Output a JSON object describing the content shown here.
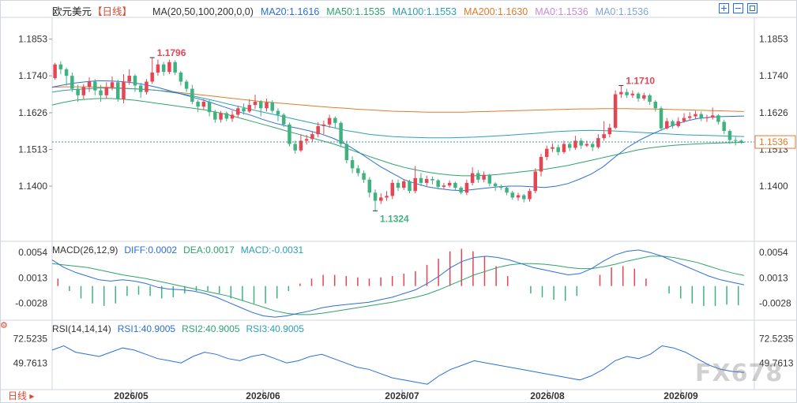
{
  "header": {
    "symbol": "欧元美元",
    "period": "【日线】",
    "ma_label": "MA(20,50,100,200,0,0)",
    "ma_values": [
      {
        "label": "MA20:1.1616",
        "color": "#2b6fd6"
      },
      {
        "label": "MA50:1.1535",
        "color": "#2fa36b"
      },
      {
        "label": "MA100:1.1553",
        "color": "#2c9fb5"
      },
      {
        "label": "MA200:1.1630",
        "color": "#e07b2e"
      },
      {
        "label": "MA0:1.1536",
        "color": "#c68cd6"
      },
      {
        "label": "MA0:1.1536",
        "color": "#7fa6d9"
      }
    ]
  },
  "macd_header": {
    "label": "MACD(26,12,9)",
    "diff": "DIFF:0.0002",
    "dea": "DEA:0.0017",
    "macd": "MACD:-0.0031"
  },
  "rsi_header": {
    "label": "RSI(14,14,14)",
    "rsi1": "RSI1:40.9005",
    "rsi2": "RSI2:40.9005",
    "rsi3": "RSI3:40.9005"
  },
  "bottom": {
    "period_button": "日线",
    "watermark": "FX678"
  },
  "colors": {
    "up": "#e64553",
    "down": "#3fb27f",
    "ma20": "#2b6fd6",
    "ma50": "#2fa36b",
    "ma100": "#2c9fb5",
    "ma200": "#e07b2e",
    "diff": "#2b6fd6",
    "dea": "#2fa36b",
    "rsi": "#2b6fd6",
    "accent": "#e0452d"
  },
  "chart_data": {
    "type": "candlestick",
    "price_axis": {
      "ticks": [
        "1.1853",
        "1.1740",
        "1.1626",
        "1.1513",
        "1.1400"
      ],
      "current": "1.1536"
    },
    "macd_axis": {
      "ticks": [
        "0.0054",
        "0.0013",
        "-0.0028"
      ]
    },
    "rsi_axis": {
      "ticks": [
        "72.5235",
        "49.7613"
      ]
    },
    "x_ticks": [
      "2026/05",
      "2026/06",
      "2026/07",
      "2026/08",
      "2026/09"
    ],
    "annotations": [
      {
        "text": "1.1796",
        "type": "high"
      },
      {
        "text": "1.1324",
        "type": "low"
      },
      {
        "text": "1.1710",
        "type": "high"
      }
    ],
    "candles": [
      [
        1.1733,
        1.1775,
        1.178,
        1.1728
      ],
      [
        1.1775,
        1.176,
        1.1785,
        1.1745
      ],
      [
        1.176,
        1.174,
        1.1765,
        1.171
      ],
      [
        1.174,
        1.17,
        1.175,
        1.169
      ],
      [
        1.17,
        1.168,
        1.1712,
        1.166
      ],
      [
        1.168,
        1.1705,
        1.1715,
        1.1668
      ],
      [
        1.1705,
        1.1722,
        1.1735,
        1.169
      ],
      [
        1.1722,
        1.1695,
        1.173,
        1.168
      ],
      [
        1.1695,
        1.168,
        1.1712,
        1.166
      ],
      [
        1.168,
        1.1705,
        1.172,
        1.167
      ],
      [
        1.1705,
        1.172,
        1.1738,
        1.1695
      ],
      [
        1.172,
        1.1668,
        1.1728,
        1.166
      ],
      [
        1.1668,
        1.1722,
        1.1745,
        1.1655
      ],
      [
        1.1722,
        1.174,
        1.176,
        1.1712
      ],
      [
        1.174,
        1.171,
        1.1745,
        1.169
      ],
      [
        1.171,
        1.169,
        1.1718,
        1.1672
      ],
      [
        1.169,
        1.1722,
        1.173,
        1.1682
      ],
      [
        1.1722,
        1.175,
        1.1796,
        1.1715
      ],
      [
        1.175,
        1.1775,
        1.179,
        1.174
      ],
      [
        1.1775,
        1.1752,
        1.1783,
        1.174
      ],
      [
        1.1752,
        1.1782,
        1.179,
        1.1745
      ],
      [
        1.1782,
        1.175,
        1.1788,
        1.1742
      ],
      [
        1.175,
        1.1722,
        1.1755,
        1.171
      ],
      [
        1.1722,
        1.17,
        1.1728,
        1.169
      ],
      [
        1.17,
        1.166,
        1.1712,
        1.1652
      ],
      [
        1.166,
        1.1645,
        1.1665,
        1.1628
      ],
      [
        1.1645,
        1.166,
        1.1668,
        1.1636
      ],
      [
        1.166,
        1.1628,
        1.1665,
        1.1615
      ],
      [
        1.1628,
        1.1605,
        1.1635,
        1.1595
      ],
      [
        1.1605,
        1.1625,
        1.1632,
        1.1596
      ],
      [
        1.1625,
        1.1608,
        1.163,
        1.16
      ],
      [
        1.1608,
        1.162,
        1.1633,
        1.1598
      ],
      [
        1.162,
        1.164,
        1.1648,
        1.1612
      ],
      [
        1.164,
        1.163,
        1.1655,
        1.162
      ],
      [
        1.163,
        1.165,
        1.1668,
        1.1625
      ],
      [
        1.165,
        1.166,
        1.1682,
        1.1638
      ],
      [
        1.166,
        1.164,
        1.1665,
        1.1615
      ],
      [
        1.164,
        1.1658,
        1.167,
        1.163
      ],
      [
        1.1658,
        1.1632,
        1.1665,
        1.1625
      ],
      [
        1.1632,
        1.162,
        1.164,
        1.16
      ],
      [
        1.162,
        1.159,
        1.1625,
        1.1582
      ],
      [
        1.159,
        1.153,
        1.1596,
        1.1522
      ],
      [
        1.153,
        1.151,
        1.154,
        1.15
      ],
      [
        1.151,
        1.154,
        1.156,
        1.1505
      ],
      [
        1.154,
        1.1545,
        1.1558,
        1.1528
      ],
      [
        1.1545,
        1.156,
        1.1568,
        1.1535
      ],
      [
        1.156,
        1.1585,
        1.1597,
        1.155
      ],
      [
        1.1585,
        1.159,
        1.1602,
        1.156
      ],
      [
        1.159,
        1.161,
        1.162,
        1.158
      ],
      [
        1.161,
        1.1595,
        1.1615,
        1.158
      ],
      [
        1.1595,
        1.153,
        1.16,
        1.152
      ],
      [
        1.153,
        1.148,
        1.154,
        1.147
      ],
      [
        1.148,
        1.1455,
        1.1492,
        1.144
      ],
      [
        1.1455,
        1.144,
        1.1465,
        1.143
      ],
      [
        1.144,
        1.142,
        1.1448,
        1.141
      ],
      [
        1.142,
        1.138,
        1.1428,
        1.1365
      ],
      [
        1.138,
        1.1355,
        1.139,
        1.1324
      ],
      [
        1.1355,
        1.1365,
        1.1378,
        1.1345
      ],
      [
        1.1365,
        1.137,
        1.1385,
        1.1355
      ],
      [
        1.137,
        1.141,
        1.142,
        1.136
      ],
      [
        1.141,
        1.1395,
        1.142,
        1.1385
      ],
      [
        1.1395,
        1.1415,
        1.1422,
        1.1388
      ],
      [
        1.1415,
        1.1385,
        1.142,
        1.1378
      ],
      [
        1.1385,
        1.1425,
        1.1462,
        1.1378
      ],
      [
        1.1425,
        1.141,
        1.144,
        1.14
      ],
      [
        1.141,
        1.1422,
        1.1432,
        1.14
      ],
      [
        1.1422,
        1.1418,
        1.143,
        1.1405
      ],
      [
        1.1418,
        1.1398,
        1.1422,
        1.139
      ],
      [
        1.1398,
        1.1402,
        1.141,
        1.1392
      ],
      [
        1.1402,
        1.141,
        1.1418,
        1.1396
      ],
      [
        1.141,
        1.1395,
        1.1414,
        1.1388
      ],
      [
        1.1395,
        1.138,
        1.14,
        1.1375
      ],
      [
        1.138,
        1.141,
        1.142,
        1.1372
      ],
      [
        1.141,
        1.144,
        1.1458,
        1.1402
      ],
      [
        1.144,
        1.142,
        1.145,
        1.141
      ],
      [
        1.142,
        1.1435,
        1.1445,
        1.1412
      ],
      [
        1.1435,
        1.1408,
        1.1438,
        1.14
      ],
      [
        1.1408,
        1.14,
        1.1412,
        1.1385
      ],
      [
        1.14,
        1.1395,
        1.1405,
        1.1388
      ],
      [
        1.1395,
        1.138,
        1.1398,
        1.1372
      ],
      [
        1.138,
        1.1365,
        1.1386,
        1.1358
      ],
      [
        1.1365,
        1.1372,
        1.138,
        1.1355
      ],
      [
        1.1372,
        1.136,
        1.1376,
        1.135
      ],
      [
        1.136,
        1.1385,
        1.1392,
        1.1352
      ],
      [
        1.1385,
        1.1445,
        1.1455,
        1.1378
      ],
      [
        1.1445,
        1.149,
        1.15,
        1.143
      ],
      [
        1.149,
        1.1515,
        1.1525,
        1.148
      ],
      [
        1.1515,
        1.152,
        1.1532,
        1.1505
      ],
      [
        1.152,
        1.1505,
        1.1528,
        1.1495
      ],
      [
        1.1505,
        1.153,
        1.154,
        1.15
      ],
      [
        1.153,
        1.1518,
        1.1536,
        1.1508
      ],
      [
        1.1518,
        1.154,
        1.1555,
        1.1512
      ],
      [
        1.154,
        1.1525,
        1.1548,
        1.1515
      ],
      [
        1.1525,
        1.153,
        1.154,
        1.152
      ],
      [
        1.153,
        1.152,
        1.1535,
        1.1508
      ],
      [
        1.152,
        1.1548,
        1.156,
        1.1515
      ],
      [
        1.1548,
        1.156,
        1.16,
        1.154
      ],
      [
        1.156,
        1.158,
        1.1592,
        1.155
      ],
      [
        1.158,
        1.1683,
        1.1695,
        1.1575
      ],
      [
        1.1683,
        1.169,
        1.171,
        1.1672
      ],
      [
        1.169,
        1.168,
        1.17,
        1.1672
      ],
      [
        1.168,
        1.1685,
        1.1695,
        1.1672
      ],
      [
        1.1685,
        1.167,
        1.169,
        1.166
      ],
      [
        1.167,
        1.168,
        1.1688,
        1.1664
      ],
      [
        1.168,
        1.166,
        1.1684,
        1.165
      ],
      [
        1.166,
        1.164,
        1.1665,
        1.163
      ],
      [
        1.164,
        1.1578,
        1.1646,
        1.157
      ],
      [
        1.1578,
        1.16,
        1.161,
        1.1575
      ],
      [
        1.16,
        1.1585,
        1.1605,
        1.1578
      ],
      [
        1.1585,
        1.16,
        1.1612,
        1.158
      ],
      [
        1.16,
        1.161,
        1.1625,
        1.1595
      ],
      [
        1.161,
        1.1615,
        1.1628,
        1.1602
      ],
      [
        1.1615,
        1.1622,
        1.1632,
        1.1608
      ],
      [
        1.1622,
        1.161,
        1.163,
        1.16
      ],
      [
        1.161,
        1.1612,
        1.162,
        1.1598
      ],
      [
        1.1612,
        1.1618,
        1.1642,
        1.1605
      ],
      [
        1.1618,
        1.1598,
        1.1622,
        1.159
      ],
      [
        1.1598,
        1.157,
        1.1605,
        1.156
      ],
      [
        1.157,
        1.1542,
        1.1575,
        1.153
      ],
      [
        1.1542,
        1.154,
        1.1552,
        1.1525
      ],
      [
        1.154,
        1.1536,
        1.1544,
        1.153
      ]
    ],
    "ma20": [
      1.1705,
      1.1712,
      1.1718,
      1.1722,
      1.1725,
      1.1724,
      1.1722,
      1.1718,
      1.1712,
      1.1704,
      1.1694,
      1.1684,
      1.1674,
      1.1664,
      1.1652,
      1.164,
      1.1628,
      1.1618,
      1.1605,
      1.1594,
      1.1585,
      1.1578,
      1.157,
      1.156,
      1.1547,
      1.153,
      1.1508,
      1.1484,
      1.146,
      1.144,
      1.142,
      1.1408,
      1.1398,
      1.1392,
      1.1388,
      1.1386,
      1.139,
      1.1394,
      1.1398,
      1.14,
      1.14,
      1.1398,
      1.1396,
      1.14,
      1.1408,
      1.1422,
      1.1438,
      1.146,
      1.149,
      1.1518,
      1.154,
      1.1558,
      1.1574,
      1.1588,
      1.16,
      1.1608,
      1.1612,
      1.1614,
      1.1615,
      1.1616
    ],
    "ma50": [
      1.165,
      1.1658,
      1.1665,
      1.1668,
      1.167,
      1.167,
      1.1668,
      1.1665,
      1.166,
      1.1655,
      1.165,
      1.1645,
      1.164,
      1.1635,
      1.1628,
      1.162,
      1.161,
      1.16,
      1.159,
      1.158,
      1.157,
      1.156,
      1.155,
      1.154,
      1.153,
      1.1518,
      1.1505,
      1.1492,
      1.148,
      1.1468,
      1.1458,
      1.145,
      1.1443,
      1.1438,
      1.1434,
      1.1432,
      1.1432,
      1.1433,
      1.1436,
      1.144,
      1.1444,
      1.1448,
      1.1452,
      1.1458,
      1.1464,
      1.1472,
      1.148,
      1.1488,
      1.1496,
      1.1504,
      1.1512,
      1.1518,
      1.1522,
      1.1526,
      1.1528,
      1.153,
      1.1532,
      1.1533,
      1.1534,
      1.1535
    ],
    "ma100": [
      1.169,
      1.1695,
      1.1698,
      1.17,
      1.1702,
      1.1702,
      1.1701,
      1.17,
      1.1698,
      1.1695,
      1.169,
      1.1685,
      1.1678,
      1.167,
      1.1662,
      1.1653,
      1.1645,
      1.1636,
      1.1628,
      1.162,
      1.1612,
      1.1604,
      1.1596,
      1.1588,
      1.158,
      1.1572,
      1.1566,
      1.156,
      1.1556,
      1.1553,
      1.1551,
      1.155,
      1.1549,
      1.1549,
      1.1549,
      1.155,
      1.1551,
      1.1553,
      1.1555,
      1.1557,
      1.156,
      1.1562,
      1.1565,
      1.1568,
      1.157,
      1.1571,
      1.1572,
      1.1571,
      1.157,
      1.1568,
      1.1566,
      1.1564,
      1.1562,
      1.156,
      1.1558,
      1.1557,
      1.1556,
      1.1555,
      1.1554,
      1.1553
    ],
    "ma200": [
      1.1705,
      1.1706,
      1.1706,
      1.1706,
      1.1705,
      1.1704,
      1.1702,
      1.17,
      1.1698,
      1.1695,
      1.1692,
      1.1688,
      1.1684,
      1.168,
      1.1676,
      1.1672,
      1.1668,
      1.1664,
      1.166,
      1.1657,
      1.1654,
      1.1651,
      1.1648,
      1.1645,
      1.1642,
      1.164,
      1.1637,
      1.1635,
      1.1633,
      1.1631,
      1.163,
      1.1629,
      1.1628,
      1.1628,
      1.1628,
      1.1628,
      1.1629,
      1.163,
      1.1631,
      1.1632,
      1.1633,
      1.1634,
      1.1635,
      1.1636,
      1.1637,
      1.1638,
      1.1638,
      1.1639,
      1.1639,
      1.1639,
      1.1638,
      1.1638,
      1.1637,
      1.1636,
      1.1635,
      1.1634,
      1.1633,
      1.1632,
      1.1631,
      1.163
    ],
    "diff": [
      0.0042,
      0.003,
      0.0022,
      0.0016,
      0.001,
      0.0008,
      0.001,
      0.0008,
      0.0004,
      -0.0002,
      -0.0005,
      -0.0006,
      -0.0008,
      -0.0012,
      -0.0018,
      -0.0026,
      -0.0034,
      -0.0042,
      -0.0048,
      -0.005,
      -0.0048,
      -0.0044,
      -0.004,
      -0.0035,
      -0.0032,
      -0.003,
      -0.0028,
      -0.0026,
      -0.0022,
      -0.0018,
      -0.0012,
      -0.0006,
      0.0004,
      0.0016,
      0.003,
      0.004,
      0.0046,
      0.0048,
      0.0046,
      0.0042,
      0.0036,
      0.003,
      0.0026,
      0.0022,
      0.0018,
      0.002,
      0.0028,
      0.004,
      0.005,
      0.0056,
      0.0058,
      0.0054,
      0.0048,
      0.004,
      0.0032,
      0.0024,
      0.0016,
      0.001,
      0.0006,
      0.0002
    ],
    "dea": [
      0.0036,
      0.0034,
      0.0032,
      0.003,
      0.0026,
      0.0022,
      0.0018,
      0.0015,
      0.0012,
      0.0008,
      0.0004,
      0.0,
      -0.0004,
      -0.0008,
      -0.0012,
      -0.0016,
      -0.0022,
      -0.0028,
      -0.0034,
      -0.004,
      -0.0044,
      -0.0046,
      -0.0046,
      -0.0044,
      -0.0041,
      -0.0038,
      -0.0035,
      -0.0032,
      -0.0029,
      -0.0026,
      -0.0022,
      -0.0018,
      -0.0013,
      -0.0006,
      0.0002,
      0.001,
      0.0018,
      0.0024,
      0.003,
      0.0034,
      0.0036,
      0.0036,
      0.0035,
      0.0033,
      0.003,
      0.0028,
      0.0028,
      0.0031,
      0.0035,
      0.004,
      0.0044,
      0.0048,
      0.0048,
      0.0046,
      0.0042,
      0.0038,
      0.0032,
      0.0026,
      0.0021,
      0.0017
    ],
    "macd_hist": [
      0.0012,
      -0.0008,
      -0.002,
      -0.0028,
      -0.0032,
      -0.0028,
      -0.0016,
      -0.0014,
      -0.0016,
      -0.002,
      -0.0018,
      -0.0012,
      -0.0008,
      -0.0008,
      -0.0012,
      -0.002,
      -0.0024,
      -0.0028,
      -0.0028,
      -0.002,
      -0.0008,
      0.0004,
      0.0012,
      0.0018,
      0.0018,
      0.0016,
      0.0014,
      0.0012,
      0.0014,
      0.0016,
      0.002,
      0.0024,
      0.0034,
      0.0044,
      0.0056,
      0.006,
      0.0056,
      0.0048,
      0.0032,
      0.0016,
      0.0,
      -0.0012,
      -0.0018,
      -0.0022,
      -0.0024,
      -0.0016,
      0.0,
      0.0018,
      0.003,
      0.0032,
      0.0028,
      0.0012,
      0.0,
      -0.0012,
      -0.002,
      -0.0028,
      -0.0032,
      -0.0032,
      -0.003,
      -0.0031
    ],
    "rsi": [
      62,
      66,
      60,
      58,
      56,
      60,
      64,
      62,
      58,
      54,
      52,
      50,
      56,
      60,
      58,
      54,
      52,
      56,
      58,
      54,
      50,
      52,
      56,
      58,
      54,
      50,
      46,
      44,
      40,
      36,
      34,
      32,
      30,
      38,
      44,
      48,
      52,
      50,
      48,
      46,
      44,
      42,
      40,
      38,
      36,
      34,
      38,
      44,
      52,
      56,
      54,
      58,
      66,
      64,
      60,
      54,
      48,
      44,
      42,
      41
    ]
  }
}
